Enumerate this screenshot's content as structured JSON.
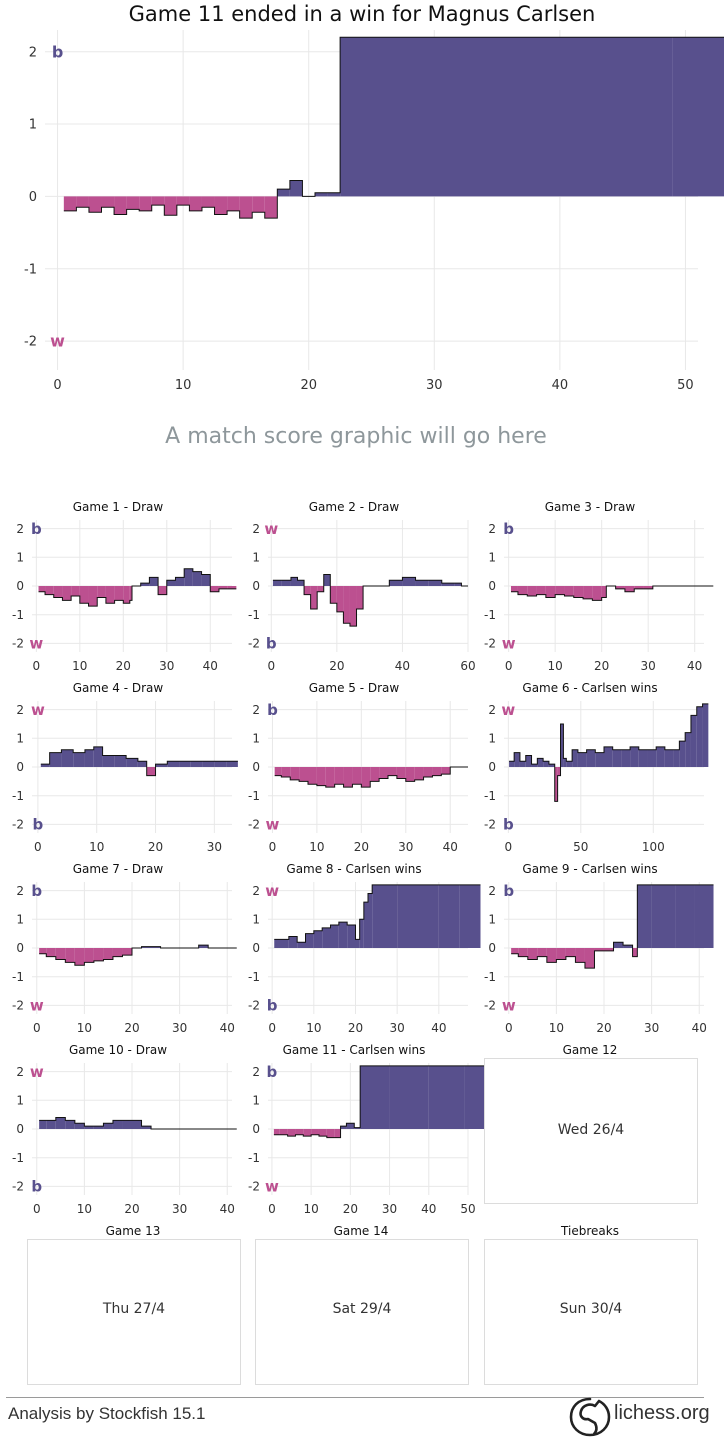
{
  "header": {
    "title": "Game 11 ended in a  win for Magnus Carlsen"
  },
  "placeholder_text": "A match score graphic will go here",
  "colors": {
    "black_adv": "#58508d",
    "white_adv": "#bc5090",
    "grid": "#e8e8e8"
  },
  "side_labels": {
    "top": "b",
    "bottom": "w"
  },
  "chart_data": [
    {
      "id": "main",
      "type": "area",
      "title": "Game 11 ended in a  win for Magnus Carlsen",
      "xlim": [
        -1,
        51
      ],
      "ylim": [
        -2.4,
        2.3
      ],
      "xticks": [
        0,
        10,
        20,
        30,
        40,
        50
      ],
      "yticks": [
        2,
        1,
        0,
        -1,
        -2
      ],
      "top_label": "b",
      "bottom_label": "w",
      "x": [
        0.5,
        1.5,
        2.5,
        3.5,
        4.5,
        5.5,
        6.5,
        7.5,
        8.5,
        9.5,
        10.5,
        11.5,
        12.5,
        13.5,
        14.5,
        15.5,
        16.5,
        17.5,
        18.5,
        19.5,
        20.5,
        21.5,
        22.5,
        49
      ],
      "y": [
        -0.2,
        -0.15,
        -0.22,
        -0.15,
        -0.25,
        -0.18,
        -0.2,
        -0.12,
        -0.26,
        -0.12,
        -0.2,
        -0.15,
        -0.25,
        -0.2,
        -0.3,
        -0.22,
        -0.3,
        0.1,
        0.22,
        0,
        0.05,
        0.05,
        2.2,
        2.2
      ]
    },
    {
      "id": "g1",
      "type": "area",
      "title": "Game 1 - Draw",
      "xlim": [
        -1,
        45
      ],
      "ylim": [
        -2.3,
        2.3
      ],
      "xticks": [
        0,
        10,
        20,
        30,
        40
      ],
      "yticks": [
        2,
        1,
        0,
        -1,
        -2
      ],
      "top_label": "b",
      "bottom_label": "w",
      "x": [
        0.5,
        2,
        4,
        6,
        8,
        10,
        12,
        14,
        16,
        18,
        20,
        21.5,
        22,
        24,
        26,
        28,
        30,
        32,
        34,
        36,
        38,
        40,
        42,
        44
      ],
      "y": [
        -0.2,
        -0.3,
        -0.4,
        -0.5,
        -0.35,
        -0.6,
        -0.7,
        -0.4,
        -0.6,
        -0.5,
        -0.6,
        -0.5,
        0,
        0.1,
        0.3,
        -0.3,
        0.2,
        0.3,
        0.6,
        0.5,
        0.4,
        -0.2,
        -0.1,
        -0.1
      ]
    },
    {
      "id": "g2",
      "type": "area",
      "title": "Game  2 - Draw",
      "xlim": [
        -1,
        60
      ],
      "ylim": [
        -2.3,
        2.3
      ],
      "xticks": [
        0,
        20,
        40,
        60
      ],
      "yticks": [
        2,
        1,
        0,
        -1,
        -2
      ],
      "top_label": "w",
      "bottom_label": "b",
      "x": [
        0.5,
        3,
        6,
        8,
        10,
        12,
        14,
        16,
        18,
        20,
        22,
        24,
        26,
        28,
        30,
        33,
        36,
        40,
        44,
        48,
        52,
        56,
        58
      ],
      "y": [
        0.2,
        0.2,
        0.3,
        0.2,
        -0.3,
        -0.8,
        -0.2,
        0.4,
        -0.6,
        -0.9,
        -1.3,
        -1.4,
        -0.8,
        0,
        0,
        0,
        0.2,
        0.3,
        0.2,
        0.2,
        0.1,
        0.1,
        0
      ]
    },
    {
      "id": "g3",
      "type": "area",
      "title": "Game 3 - Draw",
      "xlim": [
        -1,
        42
      ],
      "ylim": [
        -2.3,
        2.3
      ],
      "xticks": [
        0,
        10,
        20,
        30,
        40
      ],
      "yticks": [
        2,
        1,
        0,
        -1,
        -2
      ],
      "top_label": "b",
      "bottom_label": "w",
      "x": [
        0.5,
        2,
        4,
        6,
        8,
        10,
        12,
        14,
        16,
        18,
        20,
        21,
        23,
        25,
        27,
        29,
        31,
        36,
        40
      ],
      "y": [
        -0.2,
        -0.3,
        -0.35,
        -0.3,
        -0.4,
        -0.3,
        -0.35,
        -0.4,
        -0.45,
        -0.5,
        -0.4,
        0,
        -0.1,
        -0.2,
        -0.1,
        -0.1,
        0,
        0,
        0
      ]
    },
    {
      "id": "g4",
      "type": "area",
      "title": "Game 4 - Draw",
      "xlim": [
        -1,
        33
      ],
      "ylim": [
        -2.3,
        2.3
      ],
      "xticks": [
        0,
        10,
        20,
        30
      ],
      "yticks": [
        2,
        1,
        0,
        -1,
        -2
      ],
      "top_label": "w",
      "bottom_label": "b",
      "x": [
        0.5,
        2,
        4,
        6,
        8,
        9.5,
        11,
        13,
        15,
        17,
        18.5,
        20,
        22,
        24,
        26,
        28,
        30,
        32
      ],
      "y": [
        0.1,
        0.5,
        0.6,
        0.5,
        0.6,
        0.7,
        0.4,
        0.4,
        0.3,
        0.2,
        -0.3,
        0.1,
        0.2,
        0.2,
        0.2,
        0.2,
        0.2,
        0.2
      ]
    },
    {
      "id": "g5",
      "type": "area",
      "title": "Game  5 - Draw",
      "xlim": [
        -1,
        44
      ],
      "ylim": [
        -2.3,
        2.3
      ],
      "xticks": [
        0,
        10,
        20,
        30,
        40
      ],
      "yticks": [
        2,
        1,
        0,
        -1,
        -2
      ],
      "top_label": "b",
      "bottom_label": "w",
      "x": [
        0.5,
        2,
        4,
        6,
        8,
        10,
        12,
        14,
        16,
        18,
        20,
        22,
        24,
        26,
        28,
        30,
        32,
        34,
        36,
        38,
        40,
        42
      ],
      "y": [
        -0.3,
        -0.35,
        -0.45,
        -0.5,
        -0.6,
        -0.65,
        -0.7,
        -0.6,
        -0.7,
        -0.6,
        -0.7,
        -0.5,
        -0.4,
        -0.3,
        -0.4,
        -0.5,
        -0.45,
        -0.35,
        -0.3,
        -0.25,
        0,
        0
      ]
    },
    {
      "id": "g6",
      "type": "area",
      "title": "Game 6 - Carlsen  wins",
      "xlim": [
        -3,
        135
      ],
      "ylim": [
        -2.3,
        2.3
      ],
      "xticks": [
        0,
        50,
        100
      ],
      "yticks": [
        2,
        1,
        0,
        -1,
        -2
      ],
      "top_label": "w",
      "bottom_label": "b",
      "x": [
        0.5,
        4,
        8,
        12,
        16,
        20,
        24,
        28,
        32,
        34,
        36,
        38,
        40,
        44,
        48,
        54,
        60,
        66,
        72,
        78,
        84,
        90,
        96,
        102,
        108,
        114,
        118,
        122,
        126,
        130,
        134
      ],
      "y": [
        0.2,
        0.5,
        0.2,
        0.4,
        0.1,
        0.3,
        0.2,
        0.1,
        -1.2,
        -0.3,
        1.5,
        0.3,
        0.2,
        0.6,
        0.5,
        0.6,
        0.5,
        0.7,
        0.6,
        0.6,
        0.7,
        0.6,
        0.6,
        0.7,
        0.6,
        0.6,
        0.9,
        1.2,
        1.8,
        2.1,
        2.2
      ]
    },
    {
      "id": "g7",
      "type": "area",
      "title": "Game 7 - Draw",
      "xlim": [
        -1,
        41
      ],
      "ylim": [
        -2.3,
        2.3
      ],
      "xticks": [
        0,
        10,
        20,
        30,
        40
      ],
      "yticks": [
        2,
        1,
        0,
        -1,
        -2
      ],
      "top_label": "b",
      "bottom_label": "w",
      "x": [
        0.5,
        2,
        4,
        6,
        8,
        10,
        12,
        14,
        16,
        18,
        20,
        22,
        26,
        30,
        34,
        36,
        38,
        40
      ],
      "y": [
        -0.2,
        -0.3,
        -0.4,
        -0.5,
        -0.6,
        -0.5,
        -0.45,
        -0.4,
        -0.3,
        -0.25,
        0,
        0.05,
        0,
        0,
        0.1,
        0,
        0,
        0
      ]
    },
    {
      "id": "g8",
      "type": "area",
      "title": "Game  8 - Carlsen  wins",
      "xlim": [
        -1,
        47
      ],
      "ylim": [
        -2.3,
        2.3
      ],
      "xticks": [
        0,
        10,
        20,
        30,
        40
      ],
      "yticks": [
        2,
        1,
        0,
        -1,
        -2
      ],
      "top_label": "w",
      "bottom_label": "b",
      "x": [
        0.5,
        2,
        4,
        6,
        8,
        10,
        12,
        14,
        16,
        18,
        20,
        21,
        22,
        23,
        24,
        30,
        40,
        45
      ],
      "y": [
        0.3,
        0.3,
        0.4,
        0.2,
        0.5,
        0.6,
        0.7,
        0.8,
        0.9,
        0.8,
        0.3,
        1.0,
        1.6,
        1.9,
        2.2,
        2.2,
        2.2,
        2.2
      ]
    },
    {
      "id": "g9",
      "type": "area",
      "title": "Game 9 - Carlsen  wins",
      "xlim": [
        -1,
        41
      ],
      "ylim": [
        -2.3,
        2.3
      ],
      "xticks": [
        0,
        10,
        20,
        30,
        40
      ],
      "yticks": [
        2,
        1,
        0,
        -1,
        -2
      ],
      "top_label": "b",
      "bottom_label": "w",
      "x": [
        0.5,
        2,
        4,
        6,
        8,
        10,
        12,
        14,
        16,
        18,
        20,
        22,
        24,
        26,
        27,
        30,
        35,
        39
      ],
      "y": [
        -0.2,
        -0.3,
        -0.4,
        -0.3,
        -0.5,
        -0.4,
        -0.3,
        -0.5,
        -0.7,
        -0.1,
        -0.1,
        0.2,
        0.1,
        -0.3,
        2.2,
        2.2,
        2.2,
        2.2
      ]
    },
    {
      "id": "g10",
      "type": "area",
      "title": "Game 10 - Draw",
      "xlim": [
        -1,
        41
      ],
      "ylim": [
        -2.3,
        2.3
      ],
      "xticks": [
        0,
        10,
        20,
        30,
        40
      ],
      "yticks": [
        2,
        1,
        0,
        -1,
        -2
      ],
      "top_label": "w",
      "bottom_label": "b",
      "x": [
        0.5,
        2,
        4,
        6,
        8,
        10,
        12,
        14,
        16,
        18,
        20,
        22,
        24,
        26,
        30,
        34,
        38,
        40
      ],
      "y": [
        0.3,
        0.3,
        0.4,
        0.3,
        0.2,
        0.1,
        0.1,
        0.2,
        0.3,
        0.3,
        0.3,
        0.1,
        0,
        0,
        0,
        0,
        0,
        0
      ]
    },
    {
      "id": "g11",
      "type": "area",
      "title": "Game 11 - Carlsen  wins",
      "xlim": [
        -1,
        50
      ],
      "ylim": [
        -2.3,
        2.3
      ],
      "xticks": [
        0,
        10,
        20,
        30,
        40,
        50
      ],
      "yticks": [
        2,
        1,
        0,
        -1,
        -2
      ],
      "top_label": "b",
      "bottom_label": "w",
      "x": [
        0.5,
        2,
        4,
        6,
        8,
        10,
        12,
        14,
        16,
        17.5,
        19,
        21,
        22.5,
        30,
        40,
        49
      ],
      "y": [
        -0.2,
        -0.2,
        -0.25,
        -0.2,
        -0.25,
        -0.2,
        -0.25,
        -0.3,
        -0.3,
        0.1,
        0.2,
        0.05,
        2.2,
        2.2,
        2.2,
        2.2
      ]
    }
  ],
  "schedule": [
    {
      "title": "Game 12",
      "date": "Wed 26/4"
    },
    {
      "title": "Game 13",
      "date": "Thu 27/4"
    },
    {
      "title": "Game 14",
      "date": "Sat 29/4"
    },
    {
      "title": "Tiebreaks",
      "date": "Sun 30/4"
    }
  ],
  "footer": {
    "analysis": "Analysis by Stockfish 15.1",
    "brand": "lichess.org"
  }
}
